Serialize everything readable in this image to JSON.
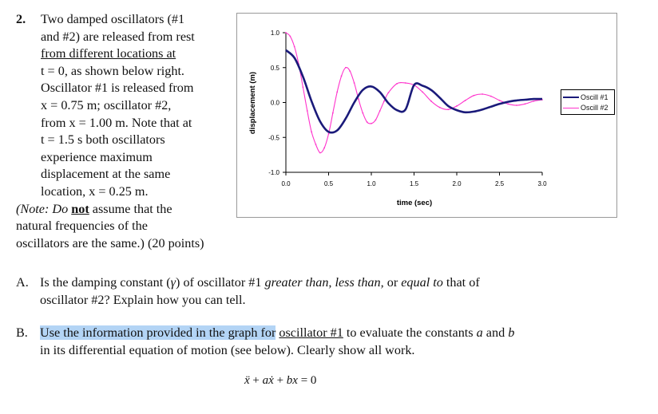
{
  "problem": {
    "number": "2.",
    "lines": [
      "Two damped oscillators (#1",
      "and #2) are released from rest",
      "from different locations at",
      "t = 0, as shown below right.",
      "Oscillator #1 is released from",
      "x = 0.75 m; oscillator #2,",
      "from x = 1.00 m.  Note that at",
      "t = 1.5 s both oscillators",
      "experience maximum",
      "displacement at the same",
      "location, x = 0.25 m."
    ],
    "note_prefix": "(Note:  Do ",
    "note_emph": "not",
    "note_suffix": " assume that the",
    "note_lines": [
      "natural frequencies of the",
      "oscillators are the same.)  (20 points)"
    ]
  },
  "partA": {
    "label": "A.",
    "line1_a": "Is the damping constant (",
    "gamma": "γ",
    "line1_b": ") of oscillator #1 ",
    "line1_c": "greater than, less than,",
    "line1_d": " or ",
    "line1_e": "equal to",
    "line1_f": " that of",
    "line2": "oscillator #2?  Explain how you can tell."
  },
  "partB": {
    "label": "B.",
    "line1_hl": "Use the information provided in the graph for",
    "line1_sp": " ",
    "line1_u": "oscillator #1",
    "line1_a": " to evaluate the constants ",
    "a": "a",
    "and": " and ",
    "b": "b",
    "line2": "in its differential equation of motion (see below).  Clearly show all work."
  },
  "equation": {
    "xdd": "ẍ",
    "plus1": " + ",
    "a": "a",
    "xd": "ẋ",
    "plus2": " + ",
    "b": "b",
    "x": "x",
    "eq": " = 0"
  },
  "chart_data": {
    "type": "line",
    "xlabel": "time (sec)",
    "ylabel": "displacement (m)",
    "xlim": [
      0,
      3
    ],
    "ylim": [
      -1,
      1
    ],
    "xticks": [
      "0.0",
      "0.5",
      "1.0",
      "1.5",
      "2.0",
      "2.5",
      "3.0"
    ],
    "yticks": [
      "1.0",
      "0.5",
      "0.0",
      "-0.5",
      "-1.0"
    ],
    "grid": false,
    "legend": "right",
    "series": [
      {
        "name": "Oscill #1",
        "color": "#1a1a7a",
        "x": [
          0.0,
          0.1,
          0.2,
          0.3,
          0.4,
          0.5,
          0.6,
          0.7,
          0.8,
          0.9,
          1.0,
          1.1,
          1.2,
          1.3,
          1.4,
          1.5,
          1.6,
          1.7,
          1.8,
          1.9,
          2.0,
          2.1,
          2.2,
          2.3,
          2.4,
          2.5,
          2.6,
          2.7,
          2.8,
          2.9,
          3.0
        ],
        "y": [
          0.75,
          0.64,
          0.37,
          0.02,
          -0.27,
          -0.42,
          -0.4,
          -0.23,
          0.0,
          0.18,
          0.23,
          0.15,
          -0.01,
          -0.11,
          -0.1,
          0.25,
          0.24,
          0.18,
          0.07,
          -0.05,
          -0.11,
          -0.14,
          -0.13,
          -0.1,
          -0.06,
          -0.02,
          0.01,
          0.03,
          0.04,
          0.05,
          0.05
        ]
      },
      {
        "name": "Oscill #2",
        "color": "#ff33cc",
        "x": [
          0.0,
          0.05,
          0.1,
          0.15,
          0.2,
          0.25,
          0.3,
          0.35,
          0.4,
          0.45,
          0.5,
          0.55,
          0.6,
          0.65,
          0.7,
          0.75,
          0.8,
          0.85,
          0.9,
          0.95,
          1.0,
          1.05,
          1.1,
          1.15,
          1.2,
          1.3,
          1.4,
          1.5,
          1.6,
          1.7,
          1.8,
          1.9,
          2.0,
          2.1,
          2.2,
          2.3,
          2.4,
          2.5,
          2.6,
          2.7,
          2.8,
          2.9,
          3.0
        ],
        "y": [
          1.0,
          0.95,
          0.8,
          0.55,
          0.22,
          -0.12,
          -0.42,
          -0.6,
          -0.72,
          -0.65,
          -0.45,
          -0.15,
          0.15,
          0.38,
          0.5,
          0.45,
          0.28,
          0.05,
          -0.15,
          -0.28,
          -0.3,
          -0.25,
          -0.12,
          0.02,
          0.14,
          0.27,
          0.28,
          0.25,
          0.15,
          0.02,
          -0.07,
          -0.1,
          -0.05,
          0.03,
          0.1,
          0.12,
          0.09,
          0.03,
          -0.02,
          -0.04,
          -0.02,
          0.02,
          0.04
        ]
      }
    ]
  }
}
